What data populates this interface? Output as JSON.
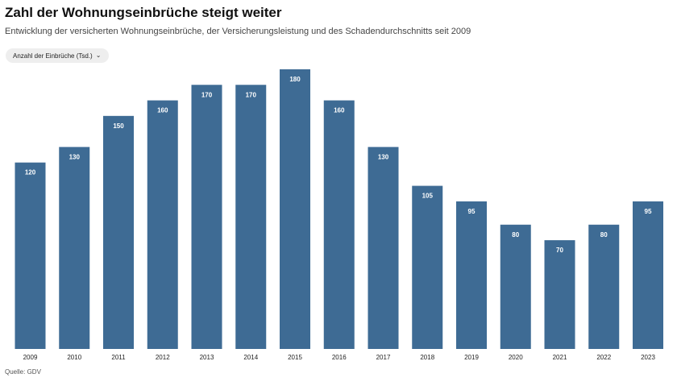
{
  "header": {
    "title": "Zahl der Wohnungseinbrüche steigt weiter",
    "subtitle": "Entwicklung der versicherten Wohnungseinbrüche, der Versicherungsleistung und des Schadendurchschnitts seit 2009"
  },
  "controls": {
    "metric_dropdown_label": "Anzahl der Einbrüche (Tsd.)",
    "metric_dropdown_icon": "chevron-down-icon"
  },
  "footer": {
    "source": "Quelle: GDV"
  },
  "colors": {
    "bar": "#3e6b94",
    "label": "#ffffff",
    "tick": "#222222"
  },
  "chart_data": {
    "type": "bar",
    "categories": [
      "2009",
      "2010",
      "2011",
      "2012",
      "2013",
      "2014",
      "2015",
      "2016",
      "2017",
      "2018",
      "2019",
      "2020",
      "2021",
      "2022",
      "2023"
    ],
    "values": [
      120,
      130,
      150,
      160,
      170,
      170,
      180,
      160,
      130,
      105,
      95,
      80,
      70,
      80,
      95
    ],
    "data_labels": [
      "120",
      "130",
      "150",
      "160",
      "170",
      "170",
      "180",
      "160",
      "130",
      "105",
      "95",
      "80",
      "70",
      "80",
      "95"
    ],
    "ylim": [
      0,
      180
    ],
    "grid": false,
    "legend": "none"
  }
}
